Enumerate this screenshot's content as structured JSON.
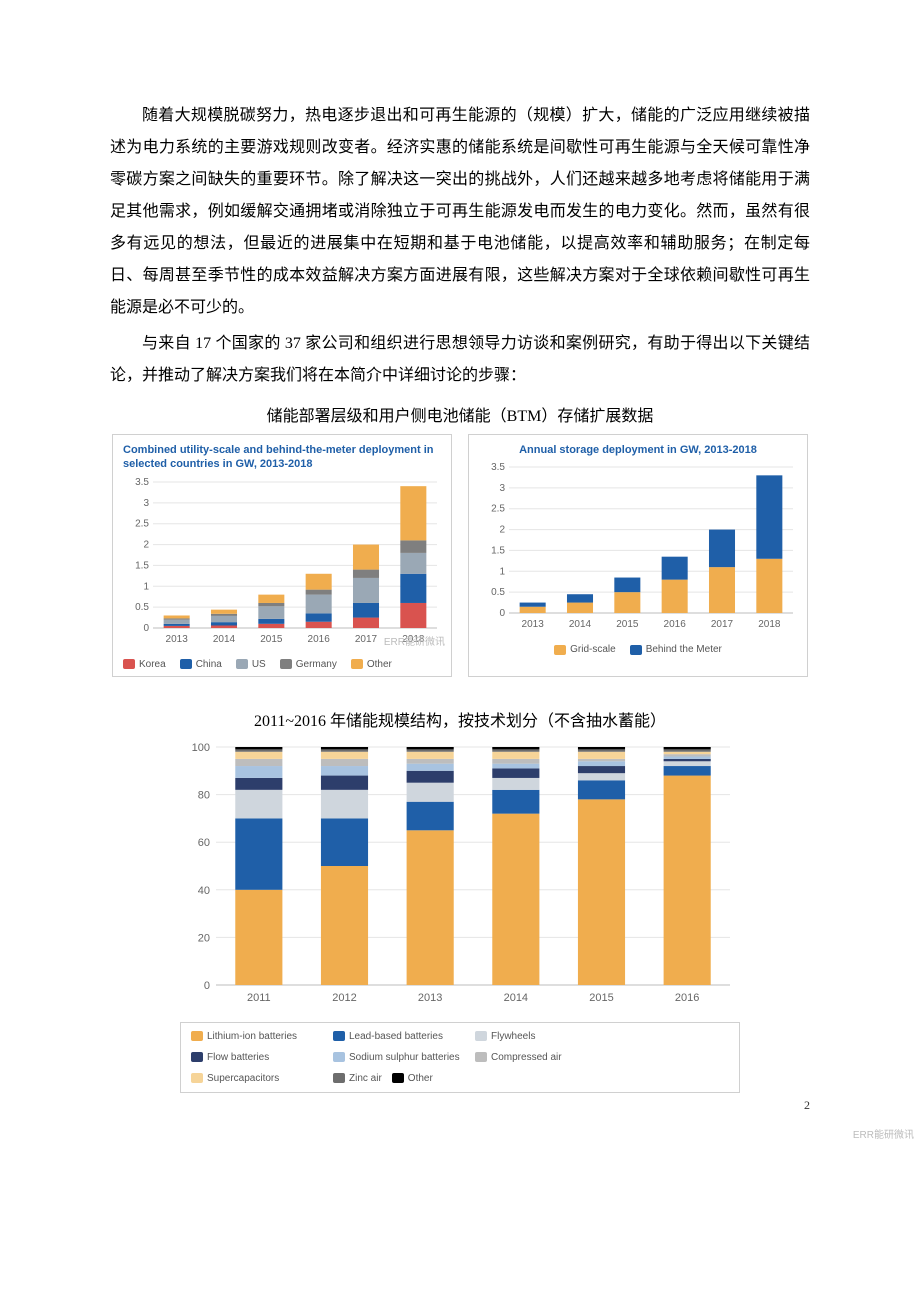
{
  "paragraphs": {
    "p1": "随着大规模脱碳努力，热电逐步退出和可再生能源的（规模）扩大，储能的广泛应用继续被描述为电力系统的主要游戏规则改变者。经济实惠的储能系统是间歇性可再生能源与全天候可靠性净零碳方案之间缺失的重要环节。除了解决这一突出的挑战外，人们还越来越多地考虑将储能用于满足其他需求，例如缓解交通拥堵或消除独立于可再生能源发电而发生的电力变化。然而，虽然有很多有远见的想法，但最近的进展集中在短期和基于电池储能，以提高效率和辅助服务；在制定每日、每周甚至季节性的成本效益解决方案方面进展有限，这些解决方案对于全球依赖间歇性可再生能源是必不可少的。",
    "p2": "与来自 17 个国家的 37 家公司和组织进行思想领导力访谈和案例研究，有助于得出以下关键结论，并推动了解决方案我们将在本简介中详细讨论的步骤：",
    "caption1": "储能部署层级和用户侧电池储能（BTM）存储扩展数据",
    "caption2": "2011~2016 年储能规模结构，按技术划分（不含抽水蓄能）"
  },
  "chart1": {
    "type": "stacked-bar",
    "title": "Combined utility-scale and behind-the-meter deployment in selected countries in GW, 2013-2018",
    "categories": [
      "2013",
      "2014",
      "2015",
      "2016",
      "2017",
      "2018"
    ],
    "ylim": [
      0,
      3.5
    ],
    "yticks": [
      0,
      0.5,
      1,
      1.5,
      2,
      2.5,
      3,
      3.5
    ],
    "series": [
      {
        "name": "Korea",
        "color": "#d9534f",
        "values": [
          0.05,
          0.06,
          0.1,
          0.15,
          0.25,
          0.6
        ]
      },
      {
        "name": "China",
        "color": "#1f5fa8",
        "values": [
          0.05,
          0.08,
          0.12,
          0.2,
          0.35,
          0.7
        ]
      },
      {
        "name": "US",
        "color": "#9aa8b5",
        "values": [
          0.1,
          0.15,
          0.3,
          0.45,
          0.6,
          0.5
        ]
      },
      {
        "name": "Germany",
        "color": "#7f7f7f",
        "values": [
          0.03,
          0.05,
          0.08,
          0.12,
          0.2,
          0.3
        ]
      },
      {
        "name": "Other",
        "color": "#f0ad4e",
        "values": [
          0.07,
          0.1,
          0.2,
          0.38,
          0.6,
          1.3
        ]
      }
    ],
    "bar_width": 0.55,
    "grid_color": "#e5e5e5",
    "background": "#ffffff",
    "axis_color": "#bdbdbd",
    "label_fontsize": 10,
    "title_fontsize": 11
  },
  "chart2": {
    "type": "stacked-bar",
    "title": "Annual storage deployment in GW, 2013-2018",
    "categories": [
      "2013",
      "2014",
      "2015",
      "2016",
      "2017",
      "2018"
    ],
    "ylim": [
      0,
      3.5
    ],
    "yticks": [
      0,
      0.5,
      1,
      1.5,
      2,
      2.5,
      3,
      3.5
    ],
    "series": [
      {
        "name": "Grid-scale",
        "color": "#f0ad4e",
        "values": [
          0.15,
          0.25,
          0.5,
          0.8,
          1.1,
          1.3
        ]
      },
      {
        "name": "Behind the Meter",
        "color": "#1f5fa8",
        "values": [
          0.1,
          0.2,
          0.35,
          0.55,
          0.9,
          2.0
        ]
      }
    ],
    "bar_width": 0.55,
    "grid_color": "#e5e5e5",
    "background": "#ffffff",
    "axis_color": "#bdbdbd",
    "label_fontsize": 10,
    "title_fontsize": 11
  },
  "chart3": {
    "type": "stacked-bar-100",
    "categories": [
      "2011",
      "2012",
      "2013",
      "2014",
      "2015",
      "2016"
    ],
    "ylim": [
      0,
      100
    ],
    "yticks": [
      0,
      20,
      40,
      60,
      80,
      100
    ],
    "series": [
      {
        "name": "Lithium-ion batteries",
        "color": "#f0ad4e",
        "values": [
          40,
          50,
          65,
          72,
          78,
          88
        ]
      },
      {
        "name": "Lead-based batteries",
        "color": "#1f5fa8",
        "values": [
          30,
          20,
          12,
          10,
          8,
          4
        ]
      },
      {
        "name": "Flywheels",
        "color": "#cfd6dd",
        "values": [
          12,
          12,
          8,
          5,
          3,
          2
        ]
      },
      {
        "name": "Flow batteries",
        "color": "#2d3e6b",
        "values": [
          5,
          6,
          5,
          4,
          3,
          1
        ]
      },
      {
        "name": "Sodium sulphur batteries",
        "color": "#a8c3e0",
        "values": [
          5,
          4,
          3,
          2,
          2,
          1
        ]
      },
      {
        "name": "Compressed air",
        "color": "#bdbdbd",
        "values": [
          3,
          3,
          2,
          2,
          1,
          1
        ]
      },
      {
        "name": "Supercapacitors",
        "color": "#f6d498",
        "values": [
          3,
          3,
          3,
          3,
          3,
          1
        ]
      },
      {
        "name": "Zinc air",
        "color": "#6d6d6d",
        "values": [
          1,
          1,
          1,
          1,
          1,
          1
        ]
      },
      {
        "name": "Other",
        "color": "#000000",
        "values": [
          1,
          1,
          1,
          1,
          1,
          1
        ]
      }
    ],
    "bar_width": 0.55,
    "grid_color": "#e5e5e5",
    "background": "#ffffff",
    "axis_color": "#bdbdbd",
    "label_fontsize": 11,
    "legend_groups": [
      [
        "Lithium-ion batteries",
        "Lead-based batteries",
        "Flywheels",
        "Flow batteries"
      ],
      [
        "Sodium sulphur batteries",
        "Compressed air",
        "Supercapacitors",
        "Zinc air",
        "Other"
      ]
    ]
  },
  "watermark": "ERR能研微讯",
  "page_number": "2"
}
